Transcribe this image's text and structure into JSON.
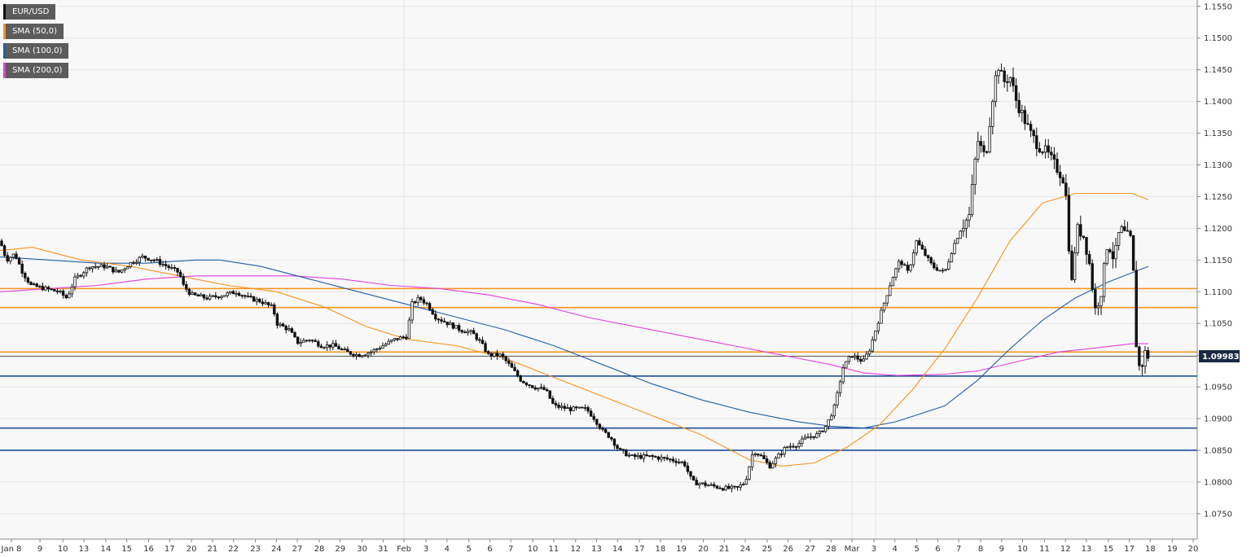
{
  "chart_data": {
    "type": "candlestick",
    "symbol": "EUR/USD",
    "legend": [
      {
        "label": "EUR/USD",
        "color": "#111111"
      },
      {
        "label": "SMA (50,0)",
        "color": "#f7931a"
      },
      {
        "label": "SMA (100,0)",
        "color": "#1f5fa8"
      },
      {
        "label": "SMA (200,0)",
        "color": "#e040e0"
      }
    ],
    "last_price": "1.09983",
    "ylim": [
      1.071,
      1.156
    ],
    "y_ticks": [
      "1.0750",
      "1.0800",
      "1.0850",
      "1.0900",
      "1.0950",
      "1.1000",
      "1.1050",
      "1.1100",
      "1.1150",
      "1.1200",
      "1.1250",
      "1.1300",
      "1.1350",
      "1.1400",
      "1.1450",
      "1.1500",
      "1.1550"
    ],
    "x_ticks": [
      "Jan 8",
      "9",
      "10",
      "13",
      "14",
      "15",
      "16",
      "17",
      "20",
      "21",
      "22",
      "23",
      "24",
      "27",
      "28",
      "29",
      "30",
      "31",
      "Feb",
      "3",
      "4",
      "5",
      "6",
      "7",
      "10",
      "11",
      "12",
      "13",
      "14",
      "17",
      "18",
      "19",
      "20",
      "21",
      "24",
      "25",
      "26",
      "27",
      "28",
      "Mar",
      "3",
      "4",
      "5",
      "6",
      "7",
      "8",
      "9",
      "10",
      "11",
      "12",
      "13",
      "15",
      "17",
      "18",
      "19",
      "20"
    ],
    "horizontal_levels": [
      {
        "value": 1.1105,
        "color": "#f7931a"
      },
      {
        "value": 1.1075,
        "color": "#f7931a"
      },
      {
        "value": 1.1005,
        "color": "#f7931a"
      },
      {
        "value": 1.0967,
        "color": "#1f4e9a"
      },
      {
        "value": 1.0885,
        "color": "#1f4e9a"
      },
      {
        "value": 1.085,
        "color": "#1f4e9a"
      }
    ],
    "price_path": [
      [
        0,
        1.118
      ],
      [
        8,
        1.115
      ],
      [
        18,
        1.116
      ],
      [
        28,
        1.113
      ],
      [
        38,
        1.111
      ],
      [
        55,
        1.1105
      ],
      [
        72,
        1.11
      ],
      [
        82,
        1.109
      ],
      [
        92,
        1.112
      ],
      [
        110,
        1.114
      ],
      [
        130,
        1.114
      ],
      [
        145,
        1.113
      ],
      [
        160,
        1.1145
      ],
      [
        175,
        1.1155
      ],
      [
        190,
        1.115
      ],
      [
        205,
        1.114
      ],
      [
        220,
        1.113
      ],
      [
        225,
        1.111
      ],
      [
        235,
        1.1095
      ],
      [
        255,
        1.109
      ],
      [
        275,
        1.1095
      ],
      [
        290,
        1.11
      ],
      [
        305,
        1.109
      ],
      [
        320,
        1.1085
      ],
      [
        335,
        1.1075
      ],
      [
        340,
        1.105
      ],
      [
        355,
        1.104
      ],
      [
        365,
        1.102
      ],
      [
        380,
        1.1025
      ],
      [
        395,
        1.1015
      ],
      [
        410,
        1.1015
      ],
      [
        425,
        1.1005
      ],
      [
        440,
        1.1
      ],
      [
        455,
        1.1005
      ],
      [
        470,
        1.1015
      ],
      [
        485,
        1.1025
      ],
      [
        500,
        1.103
      ],
      [
        505,
        1.108
      ],
      [
        515,
        1.109
      ],
      [
        525,
        1.108
      ],
      [
        535,
        1.106
      ],
      [
        550,
        1.105
      ],
      [
        565,
        1.104
      ],
      [
        580,
        1.1035
      ],
      [
        590,
        1.102
      ],
      [
        600,
        1.1
      ],
      [
        615,
        1.1
      ],
      [
        625,
        1.0985
      ],
      [
        640,
        1.096
      ],
      [
        655,
        1.095
      ],
      [
        670,
        1.0945
      ],
      [
        680,
        1.092
      ],
      [
        700,
        1.0915
      ],
      [
        720,
        1.0915
      ],
      [
        730,
        1.09
      ],
      [
        740,
        1.088
      ],
      [
        750,
        1.087
      ],
      [
        760,
        1.085
      ],
      [
        775,
        1.084
      ],
      [
        800,
        1.084
      ],
      [
        825,
        1.0835
      ],
      [
        840,
        1.083
      ],
      [
        850,
        1.08
      ],
      [
        870,
        1.0795
      ],
      [
        890,
        1.079
      ],
      [
        905,
        1.079
      ],
      [
        915,
        1.08
      ],
      [
        925,
        1.085
      ],
      [
        935,
        1.084
      ],
      [
        945,
        1.0825
      ],
      [
        955,
        1.084
      ],
      [
        965,
        1.0855
      ],
      [
        980,
        1.086
      ],
      [
        990,
        1.087
      ],
      [
        1005,
        1.0875
      ],
      [
        1015,
        1.089
      ],
      [
        1025,
        1.092
      ],
      [
        1035,
        1.098
      ],
      [
        1045,
        1.1
      ],
      [
        1060,
        1.099
      ],
      [
        1068,
        1.101
      ],
      [
        1075,
        1.104
      ],
      [
        1085,
        1.108
      ],
      [
        1095,
        1.112
      ],
      [
        1105,
        1.115
      ],
      [
        1115,
        1.113
      ],
      [
        1125,
        1.118
      ],
      [
        1135,
        1.116
      ],
      [
        1145,
        1.114
      ],
      [
        1160,
        1.113
      ],
      [
        1170,
        1.117
      ],
      [
        1180,
        1.12
      ],
      [
        1190,
        1.122
      ],
      [
        1200,
        1.134
      ],
      [
        1210,
        1.131
      ],
      [
        1218,
        1.14
      ],
      [
        1225,
        1.146
      ],
      [
        1232,
        1.143
      ],
      [
        1240,
        1.144
      ],
      [
        1248,
        1.14
      ],
      [
        1255,
        1.138
      ],
      [
        1265,
        1.135
      ],
      [
        1275,
        1.133
      ],
      [
        1285,
        1.132
      ],
      [
        1295,
        1.13
      ],
      [
        1305,
        1.128
      ],
      [
        1310,
        1.124
      ],
      [
        1315,
        1.11
      ],
      [
        1322,
        1.12
      ],
      [
        1330,
        1.119
      ],
      [
        1337,
        1.115
      ],
      [
        1345,
        1.107
      ],
      [
        1352,
        1.11
      ],
      [
        1360,
        1.118
      ],
      [
        1368,
        1.115
      ],
      [
        1375,
        1.12
      ],
      [
        1382,
        1.119
      ],
      [
        1390,
        1.118
      ],
      [
        1395,
        1.102
      ],
      [
        1400,
        1.097
      ],
      [
        1405,
        1.1005
      ],
      [
        1410,
        1.0998
      ]
    ],
    "sma_50": [
      [
        0,
        1.1165
      ],
      [
        40,
        1.117
      ],
      [
        100,
        1.115
      ],
      [
        160,
        1.114
      ],
      [
        220,
        1.1125
      ],
      [
        280,
        1.111
      ],
      [
        340,
        1.11
      ],
      [
        400,
        1.1075
      ],
      [
        450,
        1.1045
      ],
      [
        500,
        1.1025
      ],
      [
        560,
        1.1015
      ],
      [
        620,
        1.0995
      ],
      [
        680,
        1.0965
      ],
      [
        740,
        1.0935
      ],
      [
        800,
        1.0905
      ],
      [
        860,
        1.0875
      ],
      [
        920,
        1.0835
      ],
      [
        960,
        1.0825
      ],
      [
        1000,
        1.083
      ],
      [
        1040,
        1.0855
      ],
      [
        1080,
        1.089
      ],
      [
        1120,
        1.0945
      ],
      [
        1160,
        1.101
      ],
      [
        1200,
        1.109
      ],
      [
        1240,
        1.118
      ],
      [
        1280,
        1.124
      ],
      [
        1320,
        1.1255
      ],
      [
        1360,
        1.1255
      ],
      [
        1390,
        1.1255
      ],
      [
        1410,
        1.1245
      ]
    ],
    "sma_100": [
      [
        0,
        1.1155
      ],
      [
        60,
        1.115
      ],
      [
        120,
        1.1145
      ],
      [
        180,
        1.1145
      ],
      [
        240,
        1.115
      ],
      [
        270,
        1.115
      ],
      [
        320,
        1.114
      ],
      [
        380,
        1.112
      ],
      [
        440,
        1.11
      ],
      [
        500,
        1.108
      ],
      [
        560,
        1.106
      ],
      [
        620,
        1.104
      ],
      [
        680,
        1.1015
      ],
      [
        740,
        1.0985
      ],
      [
        800,
        1.0955
      ],
      [
        860,
        1.093
      ],
      [
        920,
        1.091
      ],
      [
        980,
        1.0895
      ],
      [
        1020,
        1.0888
      ],
      [
        1060,
        1.0885
      ],
      [
        1100,
        1.0895
      ],
      [
        1160,
        1.092
      ],
      [
        1200,
        1.096
      ],
      [
        1240,
        1.101
      ],
      [
        1280,
        1.1055
      ],
      [
        1320,
        1.109
      ],
      [
        1360,
        1.1115
      ],
      [
        1390,
        1.113
      ],
      [
        1410,
        1.114
      ]
    ],
    "sma_200": [
      [
        0,
        1.11
      ],
      [
        60,
        1.1105
      ],
      [
        120,
        1.111
      ],
      [
        180,
        1.112
      ],
      [
        240,
        1.1125
      ],
      [
        300,
        1.1125
      ],
      [
        360,
        1.1125
      ],
      [
        420,
        1.112
      ],
      [
        480,
        1.111
      ],
      [
        540,
        1.1105
      ],
      [
        600,
        1.1095
      ],
      [
        660,
        1.108
      ],
      [
        720,
        1.106
      ],
      [
        780,
        1.1045
      ],
      [
        840,
        1.103
      ],
      [
        900,
        1.1015
      ],
      [
        960,
        1.1
      ],
      [
        1020,
        1.0985
      ],
      [
        1060,
        1.0972
      ],
      [
        1100,
        1.0968
      ],
      [
        1160,
        1.097
      ],
      [
        1200,
        1.0975
      ],
      [
        1250,
        1.099
      ],
      [
        1300,
        1.1005
      ],
      [
        1350,
        1.1012
      ],
      [
        1390,
        1.1018
      ],
      [
        1410,
        1.1018
      ]
    ]
  }
}
